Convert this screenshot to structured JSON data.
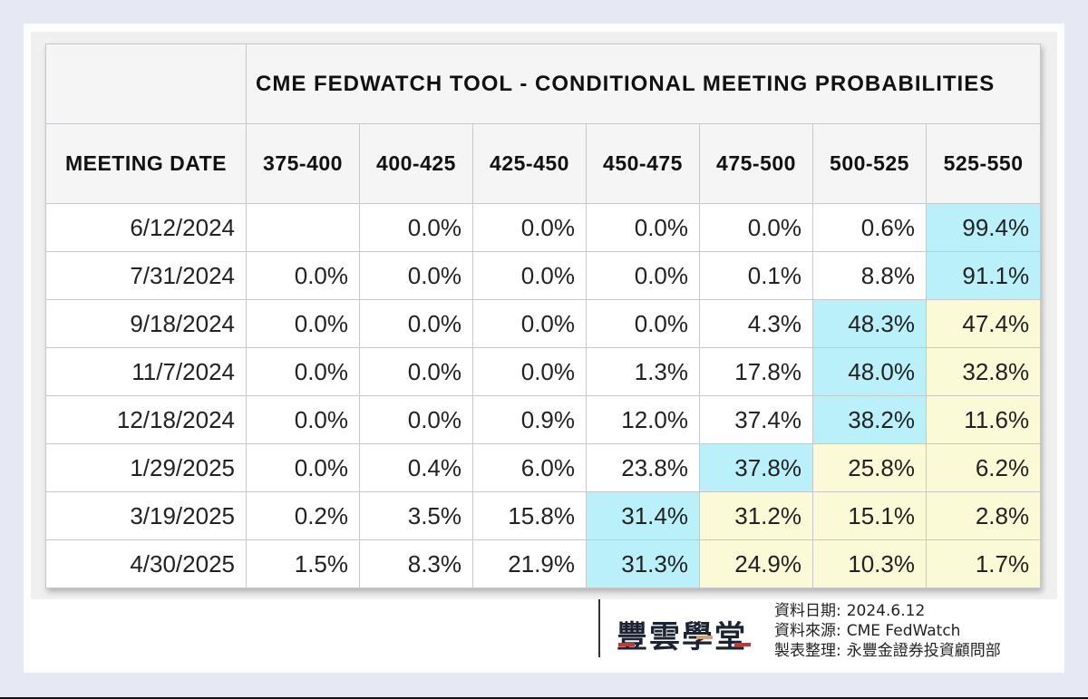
{
  "table": {
    "title": "CME FEDWATCH TOOL - CONDITIONAL MEETING PROBABILITIES",
    "date_header": "MEETING DATE",
    "columns": [
      "375-400",
      "400-425",
      "425-450",
      "450-475",
      "475-500",
      "500-525",
      "525-550"
    ],
    "rows": [
      {
        "date": "6/12/2024",
        "cells": [
          "",
          "0.0%",
          "0.0%",
          "0.0%",
          "0.0%",
          "0.6%",
          "99.4%"
        ],
        "hl": [
          "",
          "",
          "",
          "",
          "",
          "",
          "b"
        ]
      },
      {
        "date": "7/31/2024",
        "cells": [
          "0.0%",
          "0.0%",
          "0.0%",
          "0.0%",
          "0.1%",
          "8.8%",
          "91.1%"
        ],
        "hl": [
          "",
          "",
          "",
          "",
          "",
          "",
          "b"
        ]
      },
      {
        "date": "9/18/2024",
        "cells": [
          "0.0%",
          "0.0%",
          "0.0%",
          "0.0%",
          "4.3%",
          "48.3%",
          "47.4%"
        ],
        "hl": [
          "",
          "",
          "",
          "",
          "",
          "b",
          "y"
        ]
      },
      {
        "date": "11/7/2024",
        "cells": [
          "0.0%",
          "0.0%",
          "0.0%",
          "1.3%",
          "17.8%",
          "48.0%",
          "32.8%"
        ],
        "hl": [
          "",
          "",
          "",
          "",
          "",
          "b",
          "y"
        ]
      },
      {
        "date": "12/18/2024",
        "cells": [
          "0.0%",
          "0.0%",
          "0.9%",
          "12.0%",
          "37.4%",
          "38.2%",
          "11.6%"
        ],
        "hl": [
          "",
          "",
          "",
          "",
          "",
          "b",
          "y"
        ]
      },
      {
        "date": "1/29/2025",
        "cells": [
          "0.0%",
          "0.4%",
          "6.0%",
          "23.8%",
          "37.8%",
          "25.8%",
          "6.2%"
        ],
        "hl": [
          "",
          "",
          "",
          "",
          "b",
          "y",
          "y"
        ]
      },
      {
        "date": "3/19/2025",
        "cells": [
          "0.2%",
          "3.5%",
          "15.8%",
          "31.4%",
          "31.2%",
          "15.1%",
          "2.8%"
        ],
        "hl": [
          "",
          "",
          "",
          "b",
          "y",
          "y",
          "y"
        ]
      },
      {
        "date": "4/30/2025",
        "cells": [
          "1.5%",
          "8.3%",
          "21.9%",
          "31.3%",
          "24.9%",
          "10.3%",
          "1.7%"
        ],
        "hl": [
          "",
          "",
          "",
          "b",
          "y",
          "y",
          "y"
        ]
      }
    ]
  },
  "footer": {
    "logo_text": "豐雲學堂",
    "meta": [
      {
        "label": "資料日期:",
        "value": "2024.6.12"
      },
      {
        "label": "資料來源:",
        "value": "CME FedWatch"
      },
      {
        "label": "製表整理:",
        "value": "永豐金證券投資顧問部"
      }
    ]
  },
  "colors": {
    "highlight_blue": "#b9f0fa",
    "highlight_yellow": "#fafad6",
    "background": "#e6e9f4"
  },
  "chart_data": {
    "type": "table",
    "title": "CME FEDWATCH TOOL - CONDITIONAL MEETING PROBABILITIES",
    "row_header": "MEETING DATE",
    "categories": [
      "6/12/2024",
      "7/31/2024",
      "9/18/2024",
      "11/7/2024",
      "12/18/2024",
      "1/29/2025",
      "3/19/2025",
      "4/30/2025"
    ],
    "series": [
      {
        "name": "375-400",
        "values": [
          null,
          0.0,
          0.0,
          0.0,
          0.0,
          0.0,
          0.2,
          1.5
        ]
      },
      {
        "name": "400-425",
        "values": [
          0.0,
          0.0,
          0.0,
          0.0,
          0.0,
          0.4,
          3.5,
          8.3
        ]
      },
      {
        "name": "425-450",
        "values": [
          0.0,
          0.0,
          0.0,
          0.0,
          0.9,
          6.0,
          15.8,
          21.9
        ]
      },
      {
        "name": "450-475",
        "values": [
          0.0,
          0.0,
          0.0,
          1.3,
          12.0,
          23.8,
          31.4,
          31.3
        ]
      },
      {
        "name": "475-500",
        "values": [
          0.0,
          0.1,
          4.3,
          17.8,
          37.4,
          37.8,
          31.2,
          24.9
        ]
      },
      {
        "name": "500-525",
        "values": [
          0.6,
          8.8,
          48.3,
          48.0,
          38.2,
          25.8,
          15.1,
          10.3
        ]
      },
      {
        "name": "525-550",
        "values": [
          99.4,
          91.1,
          47.4,
          32.8,
          11.6,
          6.2,
          2.8,
          1.7
        ]
      }
    ],
    "unit": "%"
  }
}
